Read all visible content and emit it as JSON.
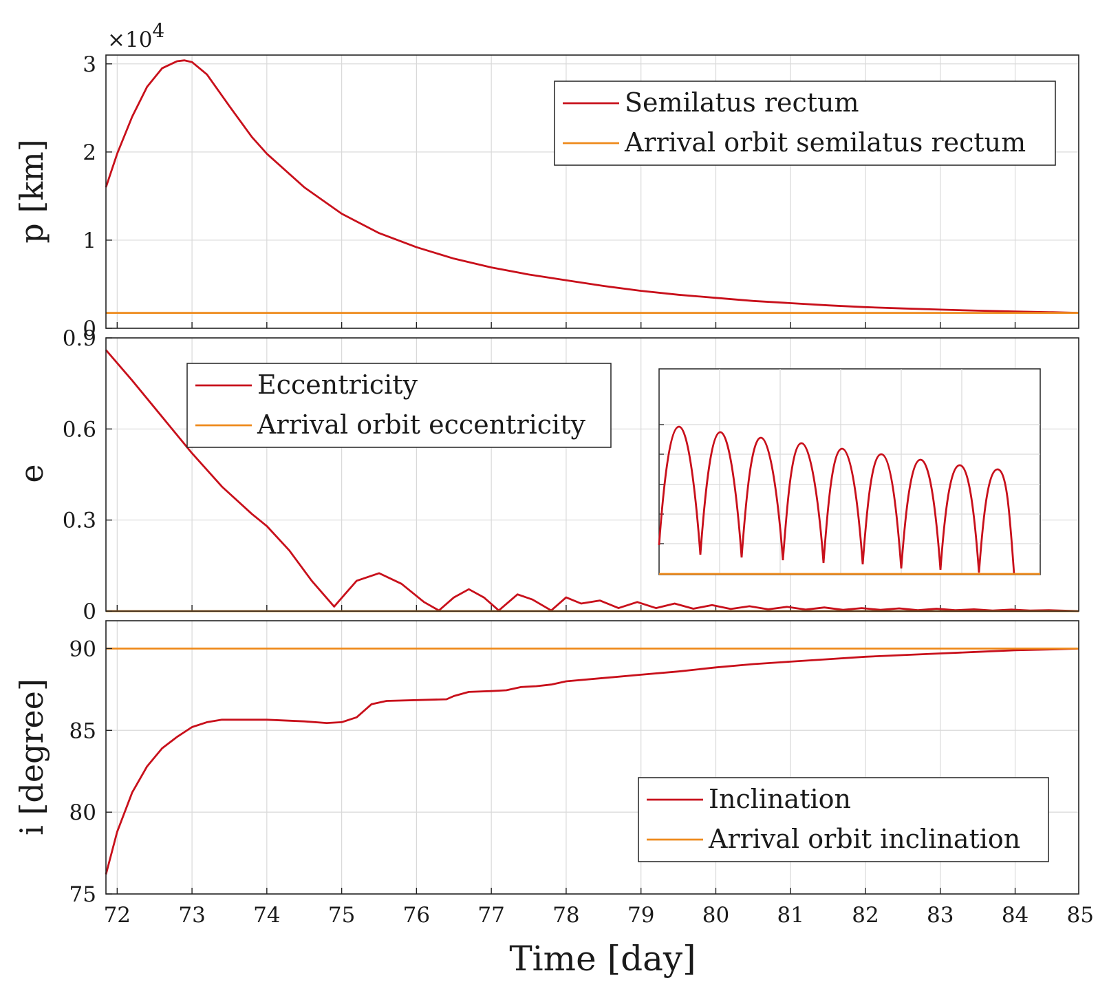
{
  "xlabel": "Time [day]",
  "chart_data": [
    {
      "type": "line",
      "panel": "semilatus-rectum",
      "ylabel": "p [km]",
      "y_scale_label": "×10",
      "y_scale_exponent": "4",
      "xlim": [
        71.85,
        84.85
      ],
      "ylim": [
        0,
        3.1
      ],
      "xticks": [
        72,
        73,
        74,
        75,
        76,
        77,
        78,
        79,
        80,
        81,
        82,
        83,
        84,
        85
      ],
      "xtick_labels": [
        "72",
        "73",
        "74",
        "75",
        "76",
        "77",
        "78",
        "79",
        "80",
        "81",
        "82",
        "83",
        "84",
        "85"
      ],
      "yticks": [
        0,
        1,
        2,
        3
      ],
      "ytick_labels": [
        "0",
        "1",
        "2",
        "3"
      ],
      "legend_position": "top-right",
      "series": [
        {
          "name": "Semilatus rectum",
          "color": "#c8101b",
          "x": [
            71.85,
            72.0,
            72.2,
            72.4,
            72.6,
            72.8,
            72.9,
            73.0,
            73.2,
            73.5,
            73.8,
            74.0,
            74.5,
            75.0,
            75.5,
            76.0,
            76.5,
            77.0,
            77.5,
            78.0,
            78.5,
            79.0,
            79.5,
            80.0,
            80.5,
            81.0,
            81.5,
            82.0,
            82.5,
            83.0,
            83.5,
            84.0,
            84.5,
            84.85
          ],
          "y": [
            1.6,
            1.98,
            2.4,
            2.74,
            2.95,
            3.03,
            3.04,
            3.02,
            2.88,
            2.52,
            2.17,
            1.98,
            1.6,
            1.3,
            1.08,
            0.92,
            0.79,
            0.69,
            0.61,
            0.545,
            0.48,
            0.425,
            0.38,
            0.345,
            0.31,
            0.285,
            0.26,
            0.24,
            0.225,
            0.212,
            0.2,
            0.19,
            0.182,
            0.175
          ]
        },
        {
          "name": "Arrival orbit semilatus rectum",
          "color": "#ee8a1c",
          "x": [
            71.85,
            84.85
          ],
          "y": [
            0.175,
            0.175
          ]
        }
      ]
    },
    {
      "type": "line",
      "panel": "eccentricity",
      "ylabel": "e",
      "xlim": [
        71.85,
        84.85
      ],
      "ylim": [
        0,
        0.9
      ],
      "xticks": [
        72,
        73,
        74,
        75,
        76,
        77,
        78,
        79,
        80,
        81,
        82,
        83,
        84,
        85
      ],
      "yticks": [
        0,
        0.3,
        0.6,
        0.9
      ],
      "ytick_labels": [
        "0",
        "0.3",
        "0.6",
        "0.9"
      ],
      "legend_position": "top-left",
      "series": [
        {
          "name": "Eccentricity",
          "color": "#c8101b",
          "x": [
            71.85,
            72.2,
            72.6,
            73.0,
            73.4,
            73.8,
            74.0,
            74.3,
            74.6,
            74.9,
            75.2,
            75.5,
            75.8,
            76.1,
            76.3,
            76.5,
            76.7,
            76.9,
            77.1,
            77.35,
            77.55,
            77.8,
            78.0,
            78.2,
            78.45,
            78.7,
            78.95,
            79.2,
            79.45,
            79.7,
            79.95,
            80.2,
            80.45,
            80.7,
            80.95,
            81.2,
            81.45,
            81.7,
            81.95,
            82.2,
            82.45,
            82.7,
            82.95,
            83.2,
            83.45,
            83.7,
            83.95,
            84.2,
            84.45,
            84.85
          ],
          "y": [
            0.86,
            0.76,
            0.64,
            0.52,
            0.41,
            0.32,
            0.28,
            0.2,
            0.1,
            0.015,
            0.1,
            0.125,
            0.09,
            0.03,
            0.002,
            0.045,
            0.072,
            0.045,
            0.002,
            0.055,
            0.038,
            0.002,
            0.045,
            0.025,
            0.035,
            0.01,
            0.03,
            0.01,
            0.025,
            0.008,
            0.02,
            0.007,
            0.016,
            0.006,
            0.014,
            0.005,
            0.012,
            0.004,
            0.01,
            0.004,
            0.009,
            0.003,
            0.008,
            0.003,
            0.006,
            0.002,
            0.005,
            0.002,
            0.003,
            0.0
          ]
        },
        {
          "name": "Arrival orbit eccentricity",
          "color": "#ee8a1c",
          "x": [
            71.85,
            84.85
          ],
          "y": [
            0.0,
            0.0
          ]
        }
      ]
    },
    {
      "type": "line",
      "panel": "inclination",
      "ylabel": "i [degree]",
      "xlim": [
        71.85,
        84.85
      ],
      "ylim": [
        75,
        91.7
      ],
      "xticks": [
        72,
        73,
        74,
        75,
        76,
        77,
        78,
        79,
        80,
        81,
        82,
        83,
        84,
        85
      ],
      "yticks": [
        75,
        80,
        85,
        90
      ],
      "ytick_labels": [
        "75",
        "80",
        "85",
        "90"
      ],
      "legend_position": "bottom-right",
      "series": [
        {
          "name": "Inclination",
          "color": "#c8101b",
          "x": [
            71.85,
            72.0,
            72.2,
            72.4,
            72.6,
            72.8,
            73.0,
            73.2,
            73.4,
            73.6,
            74.0,
            74.5,
            74.8,
            75.0,
            75.2,
            75.4,
            75.6,
            76.0,
            76.4,
            76.5,
            76.7,
            77.0,
            77.2,
            77.4,
            77.6,
            77.8,
            78.0,
            78.5,
            79.0,
            79.5,
            80.0,
            80.5,
            81.0,
            81.5,
            82.0,
            82.5,
            83.0,
            83.5,
            84.0,
            84.5,
            84.85
          ],
          "y": [
            76.2,
            78.8,
            81.2,
            82.8,
            83.9,
            84.6,
            85.2,
            85.5,
            85.65,
            85.65,
            85.65,
            85.55,
            85.45,
            85.5,
            85.8,
            86.6,
            86.8,
            86.85,
            86.9,
            87.1,
            87.35,
            87.4,
            87.45,
            87.65,
            87.7,
            87.8,
            88.0,
            88.2,
            88.4,
            88.6,
            88.85,
            89.05,
            89.2,
            89.35,
            89.5,
            89.6,
            89.7,
            89.8,
            89.9,
            89.95,
            90.0
          ]
        },
        {
          "name": "Arrival orbit inclination",
          "color": "#ee8a1c",
          "x": [
            71.85,
            84.85
          ],
          "y": [
            90.0,
            90.0
          ]
        }
      ]
    }
  ]
}
